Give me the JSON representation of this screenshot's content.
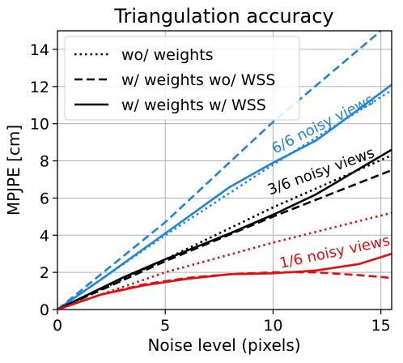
{
  "chart_data": {
    "type": "line",
    "title": "Triangulation accuracy",
    "xlabel": "Noise level (pixels)",
    "ylabel": "MPJPE [cm]",
    "xlim": [
      0,
      15.5
    ],
    "ylim": [
      0,
      15
    ],
    "xticks": [
      0,
      5,
      10,
      15
    ],
    "yticks": [
      0,
      2,
      4,
      6,
      8,
      10,
      12,
      14
    ],
    "grid": true,
    "legend_position": "top-left",
    "legend": [
      {
        "label": "wo/ weights",
        "style": "dotted"
      },
      {
        "label": "w/ weights wo/ WSS",
        "style": "dashed"
      },
      {
        "label": "w/ weights w/ WSS",
        "style": "solid"
      }
    ],
    "annotations": [
      {
        "text": "6/6 noisy views",
        "color": "#1f84e0"
      },
      {
        "text": "3/6 noisy views",
        "color": "#000000"
      },
      {
        "text": "1/6 noisy views",
        "color": "#e01010"
      }
    ],
    "series": [
      {
        "group": "6/6 noisy views",
        "style": "dotted",
        "color": "#1f84e0",
        "x": [
          0,
          5,
          10,
          15.5
        ],
        "y": [
          0,
          4.0,
          7.8,
          11.8
        ]
      },
      {
        "group": "6/6 noisy views",
        "style": "dashed",
        "color": "#1f84e0",
        "x": [
          0,
          5,
          10,
          15
        ],
        "y": [
          0,
          4.7,
          10.1,
          15.0
        ]
      },
      {
        "group": "6/6 noisy views",
        "style": "solid",
        "color": "#1f84e0",
        "x": [
          0,
          2,
          5,
          8,
          10,
          12,
          14,
          15.5
        ],
        "y": [
          0,
          1.6,
          4.1,
          6.6,
          7.9,
          9.1,
          10.8,
          12.1
        ]
      },
      {
        "group": "3/6 noisy views",
        "style": "dotted",
        "color": "#000000",
        "x": [
          0,
          5,
          10,
          15.5
        ],
        "y": [
          0,
          2.7,
          5.5,
          8.3
        ]
      },
      {
        "group": "3/6 noisy views",
        "style": "dashed",
        "color": "#000000",
        "x": [
          0,
          5,
          10,
          15.5
        ],
        "y": [
          0,
          2.6,
          5.0,
          7.5
        ]
      },
      {
        "group": "3/6 noisy views",
        "style": "solid",
        "color": "#000000",
        "x": [
          0,
          3,
          5,
          8,
          10,
          12,
          15.5
        ],
        "y": [
          0,
          1.7,
          2.7,
          4.1,
          5.1,
          6.2,
          8.6
        ]
      },
      {
        "group": "1/6 noisy views",
        "style": "dotted",
        "color": "#e01010",
        "x": [
          0,
          5,
          10,
          15.5
        ],
        "y": [
          0,
          2.0,
          3.6,
          5.2
        ]
      },
      {
        "group": "1/6 noisy views",
        "style": "dashed",
        "color": "#e01010",
        "x": [
          0,
          2,
          4,
          6,
          8,
          10,
          12,
          14,
          15.5
        ],
        "y": [
          0,
          0.8,
          1.35,
          1.7,
          1.9,
          2.0,
          2.0,
          1.85,
          1.7
        ]
      },
      {
        "group": "1/6 noisy views",
        "style": "solid",
        "color": "#e01010",
        "x": [
          0,
          2,
          4,
          6,
          8,
          10,
          12,
          14,
          15.5
        ],
        "y": [
          0,
          0.8,
          1.3,
          1.65,
          1.9,
          1.95,
          2.1,
          2.45,
          3.0
        ]
      }
    ]
  }
}
